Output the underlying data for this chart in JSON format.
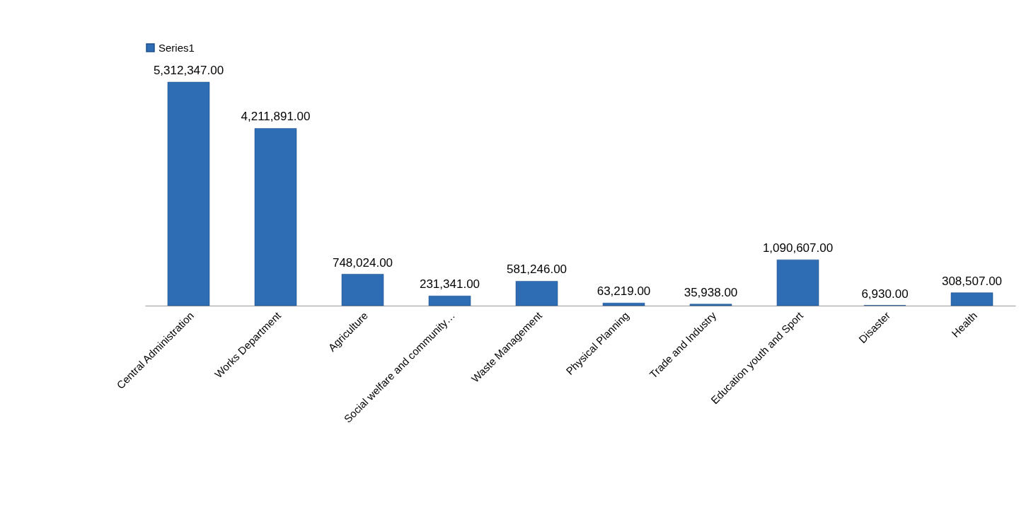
{
  "chart_data": {
    "type": "bar",
    "categories": [
      "Central Administration",
      "Works Department",
      "Agriculture",
      "Social welfare and community…",
      "Waste Management",
      "Physical Planning",
      "Trade and Industry",
      "Education youth and Sport",
      "Disaster",
      "Health"
    ],
    "series": [
      {
        "name": "Series1",
        "color": "#2e6db4",
        "values": [
          5312347,
          4211891,
          748024,
          231341,
          581246,
          63219,
          35938,
          1090607,
          6930,
          308507
        ],
        "value_labels": [
          "5,312,347.00",
          "4,211,891.00",
          "748,024.00",
          "231,341.00",
          "581,246.00",
          "63,219.00",
          "35,938.00",
          "1,090,607.00",
          "6,930.00",
          "308,507.00"
        ]
      }
    ],
    "tick_labels": "x",
    "legend": "top",
    "grid": false
  }
}
